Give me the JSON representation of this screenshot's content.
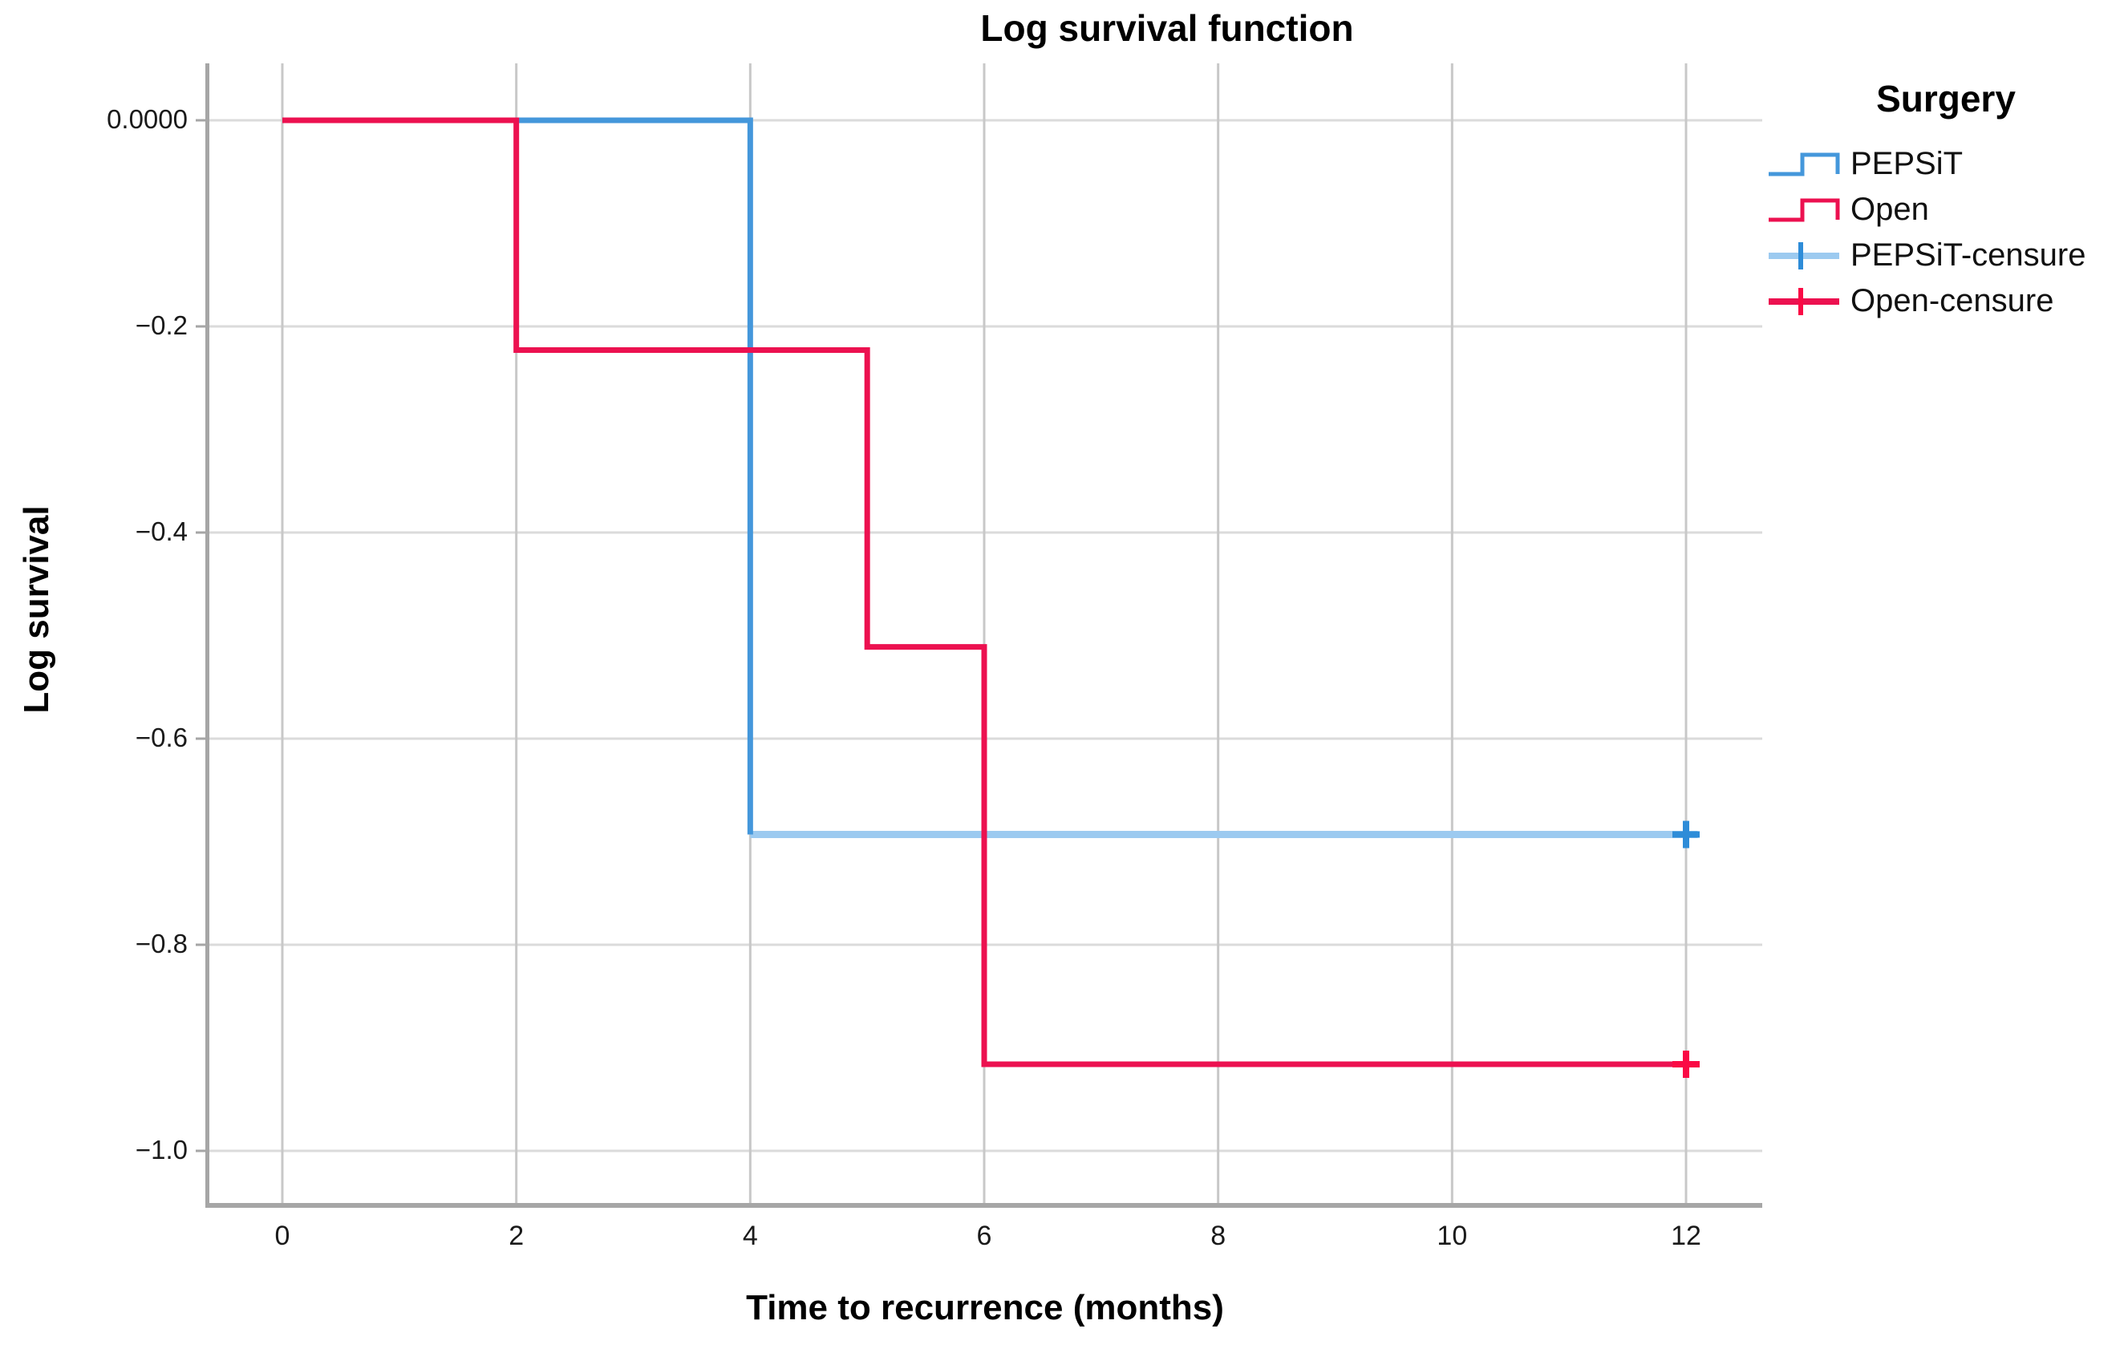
{
  "title": "Log survival function",
  "legend": {
    "title": "Surgery",
    "items": [
      {
        "label": "PEPSiT",
        "symbol": "step-line",
        "line_color": "#4497DB"
      },
      {
        "label": "Open",
        "symbol": "step-line",
        "line_color": "#EC1150"
      },
      {
        "label": "PEPSiT-censure",
        "symbol": "censored-line",
        "line_color": "#9CCAF0",
        "tick_color": "#2E8CD8"
      },
      {
        "label": "Open-censure",
        "symbol": "censored-line",
        "line_color": "#EC1150",
        "tick_color": "#FA0A45"
      }
    ]
  },
  "axis": {
    "line_color": "#A6A6A6",
    "h_grid_color": "#DBDBDB",
    "v_grid_color": "#C8C8C8"
  },
  "chart_data": {
    "type": "line",
    "subtype": "step-survival",
    "title": "Log survival function",
    "xlabel": "Time to recurrence (months)",
    "ylabel": "Log survival",
    "xlim": [
      -0.64,
      12.65
    ],
    "ylim": [
      -1.05,
      0.055
    ],
    "grid": true,
    "legend_position": "right",
    "x_ticks": [
      0,
      2,
      4,
      6,
      8,
      10,
      12
    ],
    "y_ticks": [
      {
        "value": 0.0,
        "label": "0.0000"
      },
      {
        "value": -0.2,
        "label": "−0.2"
      },
      {
        "value": -0.4,
        "label": "−0.4"
      },
      {
        "value": -0.6,
        "label": "−0.6"
      },
      {
        "value": -0.8,
        "label": "−0.8"
      },
      {
        "value": -1.0,
        "label": "−1.0"
      }
    ],
    "series": [
      {
        "name": "PEPSiT",
        "color": "#4497DB",
        "points": [
          [
            0,
            0
          ],
          [
            4,
            0
          ],
          [
            4,
            -0.693
          ]
        ],
        "censored_tail": {
          "points": [
            [
              4,
              -0.693
            ],
            [
              12.1,
              -0.693
            ]
          ],
          "color": "#9CCAF0"
        },
        "censor_mark": {
          "x": 12,
          "y": -0.693,
          "color": "#2E8CD8"
        }
      },
      {
        "name": "Open",
        "color": "#EC1150",
        "points": [
          [
            0,
            0
          ],
          [
            2,
            0
          ],
          [
            2,
            -0.223
          ],
          [
            5,
            -0.223
          ],
          [
            5,
            -0.511
          ],
          [
            6,
            -0.511
          ],
          [
            6,
            -0.916
          ],
          [
            12.1,
            -0.916
          ]
        ],
        "censor_mark": {
          "x": 12,
          "y": -0.916,
          "color": "#FA0A45"
        }
      }
    ]
  }
}
